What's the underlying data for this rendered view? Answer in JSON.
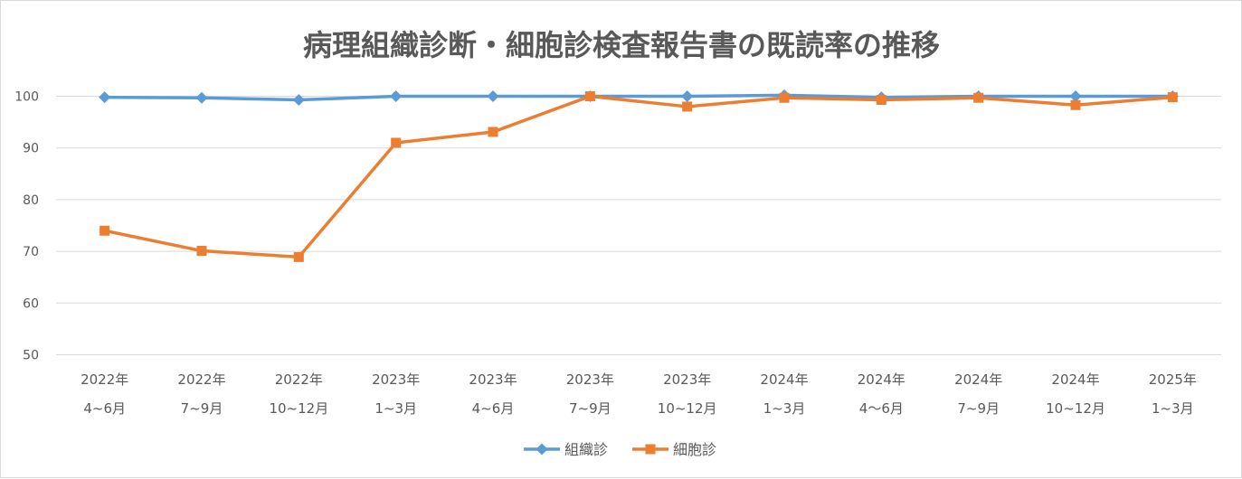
{
  "chart_data": {
    "type": "line",
    "title": "病理組織診断・細胞診検査報告書の既読率の推移",
    "xlabel": "",
    "ylabel": "",
    "ylim": [
      50,
      100
    ],
    "yticks": [
      50,
      60,
      70,
      80,
      90,
      100
    ],
    "grid": true,
    "legend_position": "bottom",
    "categories": [
      [
        "2022年",
        "4~6月"
      ],
      [
        "2022年",
        "7~9月"
      ],
      [
        "2022年",
        "10~12月"
      ],
      [
        "2023年",
        "1~3月"
      ],
      [
        "2023年",
        "4~6月"
      ],
      [
        "2023年",
        "7~9月"
      ],
      [
        "2023年",
        "10~12月"
      ],
      [
        "2024年",
        "1~3月"
      ],
      [
        "2024年",
        "4～6月"
      ],
      [
        "2024年",
        "7~9月"
      ],
      [
        "2024年",
        "10~12月"
      ],
      [
        "2025年",
        "1~3月"
      ]
    ],
    "series": [
      {
        "name": "組織診",
        "color": "#5b9bd5",
        "marker": "diamond",
        "values": [
          99.8,
          99.7,
          99.3,
          100,
          100,
          100,
          100,
          100.2,
          99.8,
          100,
          100,
          100
        ]
      },
      {
        "name": "細胞診",
        "color": "#ed7d31",
        "marker": "square",
        "values": [
          74,
          70.1,
          68.9,
          91,
          93.1,
          100,
          98,
          99.7,
          99.3,
          99.7,
          98.3,
          99.8
        ]
      }
    ]
  }
}
